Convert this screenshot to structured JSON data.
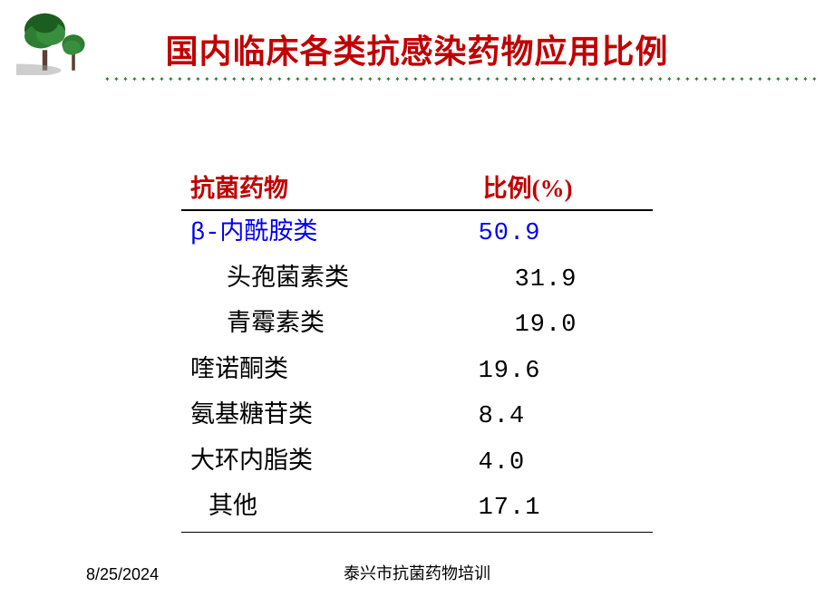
{
  "title": "国内临床各类抗感染药物应用比例",
  "table": {
    "headers": {
      "name": "抗菌药物",
      "ratio": "比例(%)"
    },
    "rows": [
      {
        "name": "β-内酰胺类",
        "value": "50.9",
        "highlight": true,
        "indent": 0,
        "val_indent": false
      },
      {
        "name": "头孢菌素类",
        "value": "31.9",
        "highlight": false,
        "indent": 1,
        "val_indent": true
      },
      {
        "name": "青霉素类",
        "value": "19.0",
        "highlight": false,
        "indent": 1,
        "val_indent": true
      },
      {
        "name": "喹诺酮类",
        "value": "19.6",
        "highlight": false,
        "indent": 0,
        "val_indent": false
      },
      {
        "name": "氨基糖苷类",
        "value": " 8.4",
        "highlight": false,
        "indent": 0,
        "val_indent": false
      },
      {
        "name": "大环内脂类",
        "value": " 4.0",
        "highlight": false,
        "indent": 0,
        "val_indent": false
      },
      {
        "name": "其他",
        "value": "17.1",
        "highlight": false,
        "indent": 2,
        "val_indent": false
      }
    ]
  },
  "footer": {
    "date": "8/25/2024",
    "center": "泰兴市抗菌药物培训"
  },
  "colors": {
    "title": "#c00000",
    "highlight": "#0000ee",
    "text": "#000000",
    "tree_dark": "#1b5e20",
    "tree_light": "#4caf50",
    "trunk": "#5d4037"
  }
}
